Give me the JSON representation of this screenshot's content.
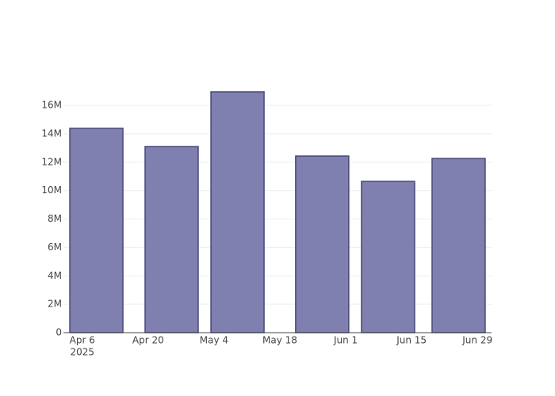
{
  "chart_data": {
    "type": "bar",
    "x": [
      "2025-04-09",
      "2025-04-25",
      "2025-05-09",
      "2025-05-27",
      "2025-06-10",
      "2025-06-25"
    ],
    "values": [
      14380000,
      13100000,
      16950000,
      12430000,
      10650000,
      12260000
    ],
    "color": "#7f7fb0",
    "edge_color": "#48487a",
    "xlim": [
      "2025-04-02",
      "2025-07-02"
    ],
    "xticks": [
      {
        "value": "2025-04-06",
        "label": "Apr 6",
        "sublabel": "2025"
      },
      {
        "value": "2025-04-20",
        "label": "Apr 20"
      },
      {
        "value": "2025-05-04",
        "label": "May 4"
      },
      {
        "value": "2025-05-18",
        "label": "May 18"
      },
      {
        "value": "2025-06-01",
        "label": "Jun 1"
      },
      {
        "value": "2025-06-15",
        "label": "Jun 15"
      },
      {
        "value": "2025-06-29",
        "label": "Jun 29"
      }
    ],
    "ylim": [
      0,
      17840000
    ],
    "yticks": [
      0,
      {
        "value": 2000000,
        "label": "2M"
      },
      {
        "value": 4000000,
        "label": "4M"
      },
      {
        "value": 6000000,
        "label": "6M"
      },
      {
        "value": 8000000,
        "label": "8M"
      },
      {
        "value": 10000000,
        "label": "10M"
      },
      {
        "value": 12000000,
        "label": "12M"
      },
      {
        "value": 14000000,
        "label": "14M"
      },
      {
        "value": 16000000,
        "label": "16M"
      }
    ],
    "grid": true
  }
}
